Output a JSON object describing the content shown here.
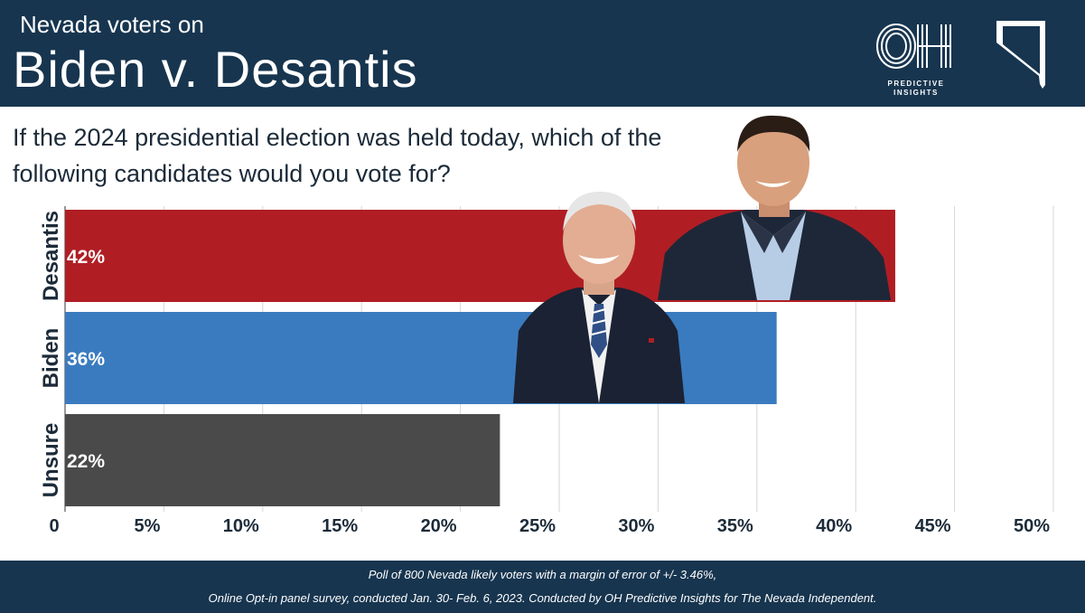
{
  "header": {
    "subtitle": "Nevada voters on",
    "title": "Biden v. Desantis",
    "logo_line1": "PREDICTIVE",
    "logo_line2": "INSIGHTS",
    "logo_mark": "OH"
  },
  "question": "If the 2024 presidential election was held today, which of the following candidates would you vote for?",
  "colors": {
    "header_bg": "#17354f",
    "desantis": "#b01e24",
    "biden": "#3a7bbf",
    "unsure": "#4a4a4a",
    "grid": "#d6d6d6"
  },
  "chart_data": {
    "type": "bar",
    "orientation": "horizontal",
    "categories": [
      "Desantis",
      "Biden",
      "Unsure"
    ],
    "values": [
      42,
      36,
      22
    ],
    "labels": [
      "42%",
      "36%",
      "22%"
    ],
    "xlim": [
      0,
      50
    ],
    "xticks": [
      0,
      5,
      10,
      15,
      20,
      25,
      30,
      35,
      40,
      45,
      50
    ],
    "xtick_labels": [
      "0",
      "5%",
      "10%",
      "15%",
      "20%",
      "25%",
      "30%",
      "35%",
      "40%",
      "45%",
      "50%"
    ],
    "grid": true
  },
  "footer": {
    "note1": "Poll of 800 Nevada likely voters with a margin of error of +/- 3.46%,",
    "note2": "Online Opt-in panel survey, conducted Jan. 30- Feb. 6, 2023.  Conducted by OH Predictive Insights  for The Nevada Independent."
  }
}
